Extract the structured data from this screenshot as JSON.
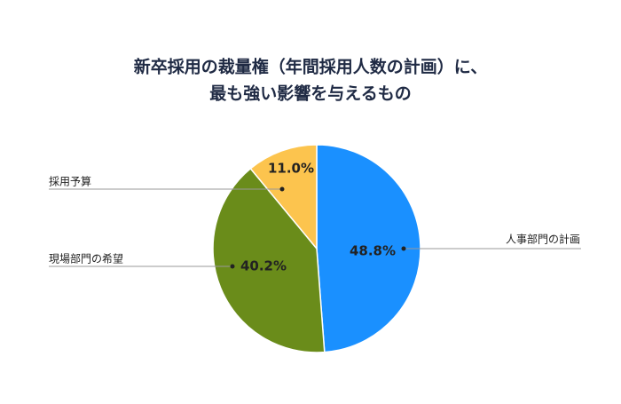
{
  "chart_data": {
    "type": "pie",
    "title": [
      "新卒採用の裁量権（年間採用人数の計画）に、",
      "最も強い影響を与えるもの"
    ],
    "categories": [
      "人事部門の計画",
      "現場部門の希望",
      "採用予算"
    ],
    "values": [
      48.8,
      40.2,
      11.0
    ],
    "value_labels": [
      "48.8%",
      "40.2%",
      "11.0%"
    ],
    "colors": [
      "#1a90ff",
      "#6a8c1a",
      "#fcc44e"
    ]
  }
}
